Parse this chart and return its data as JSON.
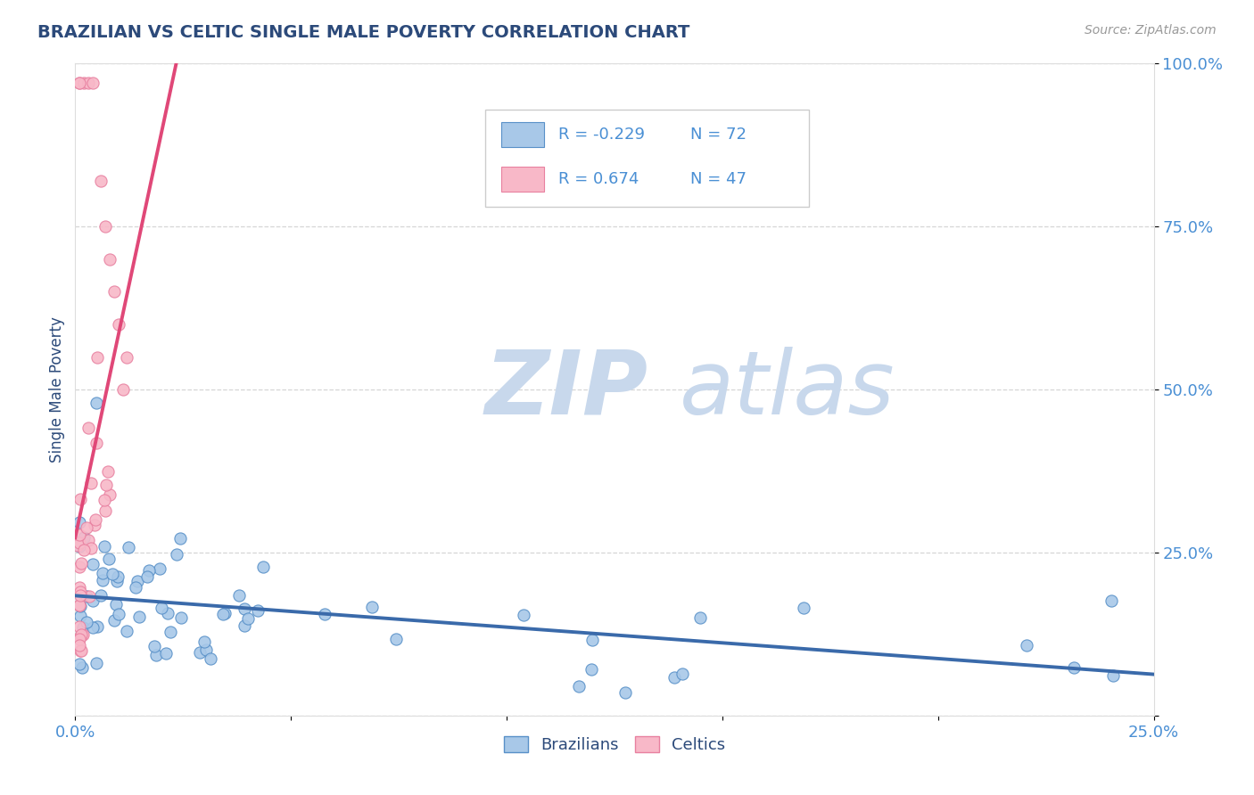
{
  "title": "BRAZILIAN VS CELTIC SINGLE MALE POVERTY CORRELATION CHART",
  "source": "Source: ZipAtlas.com",
  "ylabel": "Single Male Poverty",
  "yticks": [
    0.0,
    0.25,
    0.5,
    0.75,
    1.0
  ],
  "ytick_labels": [
    "",
    "25.0%",
    "50.0%",
    "75.0%",
    "100.0%"
  ],
  "legend_entries": [
    {
      "label": "Brazilians",
      "R": -0.229,
      "N": 72
    },
    {
      "label": "Celtics",
      "R": 0.674,
      "N": 47
    }
  ],
  "title_color": "#2c4a7a",
  "axis_label_color": "#2c4a7a",
  "tick_label_color": "#4a8fd4",
  "watermark_zip": "ZIP",
  "watermark_atlas": "atlas",
  "watermark_color": "#c8d8ec",
  "background_color": "#ffffff",
  "grid_color": "#cccccc",
  "blue_scatter_color": "#a8c8e8",
  "pink_scatter_color": "#f8b8c8",
  "blue_edge_color": "#5890c8",
  "pink_edge_color": "#e880a0",
  "blue_line_color": "#3a6aaa",
  "pink_line_color": "#e04878",
  "xmin": 0.0,
  "xmax": 0.25,
  "ymin": 0.0,
  "ymax": 1.0
}
